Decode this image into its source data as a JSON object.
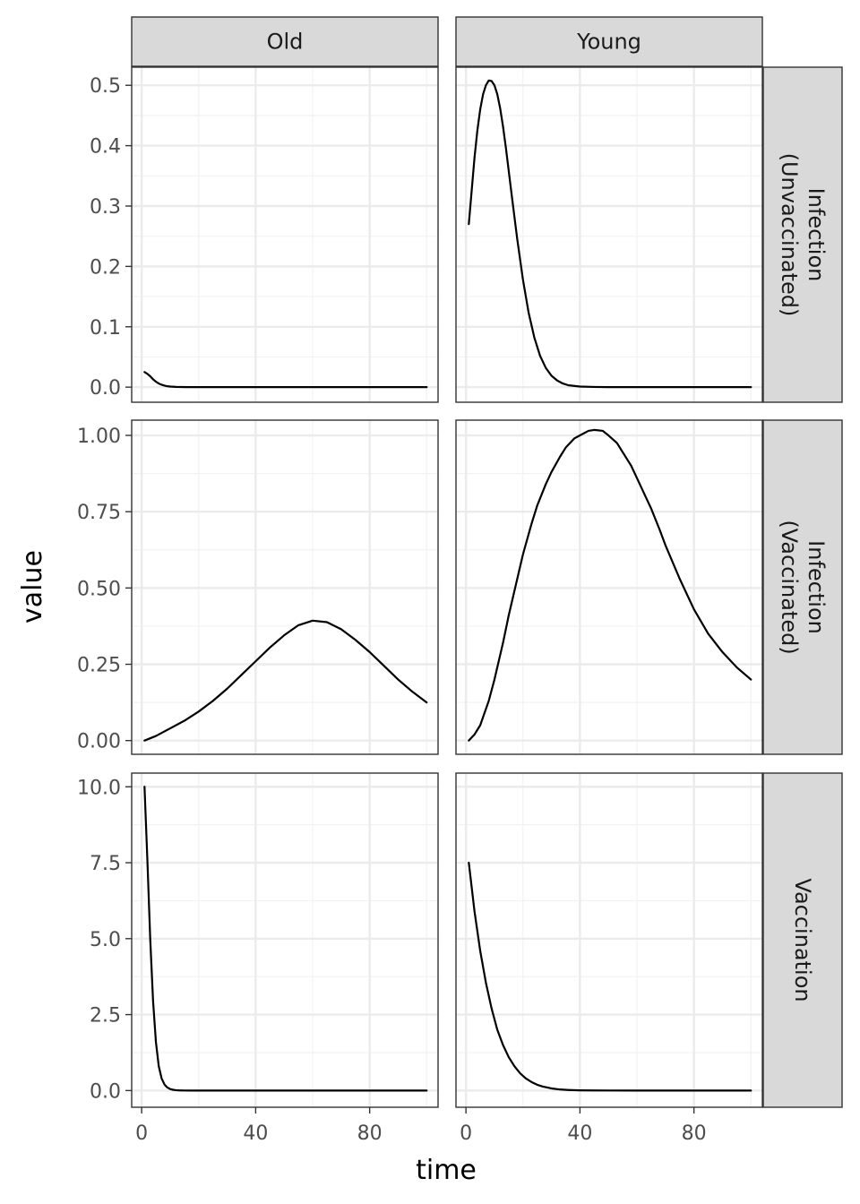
{
  "chart_data": {
    "type": "line",
    "xlabel": "time",
    "ylabel": "value",
    "columns": [
      "Old",
      "Young"
    ],
    "rows": [
      [
        "Infection",
        "(Unvaccinated)"
      ],
      [
        "Infection",
        "(Vaccinated)"
      ],
      [
        "Vaccination"
      ]
    ],
    "x_ticks": [
      "0",
      "40",
      "80"
    ],
    "x_tick_values": [
      0,
      40,
      80
    ],
    "xlim": [
      -3.5,
      104
    ],
    "row_ylims": [
      [
        -0.025,
        0.53
      ],
      [
        -0.045,
        1.05
      ],
      [
        -0.55,
        10.45
      ]
    ],
    "y_ticks": [
      [
        "0.0",
        "0.1",
        "0.2",
        "0.3",
        "0.4",
        "0.5"
      ],
      [
        "0.00",
        "0.25",
        "0.50",
        "0.75",
        "1.00"
      ],
      [
        "0.0",
        "2.5",
        "5.0",
        "7.5",
        "10.0"
      ]
    ],
    "y_tick_values": [
      [
        0,
        0.1,
        0.2,
        0.3,
        0.4,
        0.5
      ],
      [
        0,
        0.25,
        0.5,
        0.75,
        1.0
      ],
      [
        0,
        2.5,
        5.0,
        7.5,
        10.0
      ]
    ],
    "grid": true,
    "panels": [
      {
        "row": 0,
        "col": 0,
        "x": [
          1,
          2,
          3,
          4,
          5,
          6,
          7,
          8,
          9,
          10,
          12,
          14,
          16,
          20,
          30,
          50,
          70,
          100
        ],
        "y": [
          0.025,
          0.022,
          0.018,
          0.013,
          0.009,
          0.006,
          0.004,
          0.0025,
          0.0015,
          0.001,
          0.0004,
          0.0002,
          0.0001,
          0,
          0,
          0,
          0,
          0
        ]
      },
      {
        "row": 0,
        "col": 1,
        "x": [
          1,
          2,
          3,
          4,
          5,
          6,
          7,
          8,
          9,
          10,
          11,
          12,
          13,
          14,
          16,
          18,
          20,
          22,
          24,
          26,
          28,
          30,
          32,
          34,
          36,
          40,
          45,
          50,
          60,
          100
        ],
        "y": [
          0.27,
          0.325,
          0.38,
          0.425,
          0.46,
          0.485,
          0.5,
          0.508,
          0.507,
          0.5,
          0.485,
          0.462,
          0.432,
          0.397,
          0.32,
          0.245,
          0.178,
          0.123,
          0.082,
          0.052,
          0.032,
          0.019,
          0.011,
          0.006,
          0.003,
          0.001,
          0.0003,
          0.0001,
          0,
          0
        ]
      },
      {
        "row": 1,
        "col": 0,
        "x": [
          1,
          5,
          10,
          15,
          20,
          25,
          30,
          35,
          40,
          45,
          50,
          55,
          60,
          65,
          70,
          75,
          80,
          85,
          90,
          95,
          100
        ],
        "y": [
          0.0,
          0.015,
          0.04,
          0.065,
          0.095,
          0.13,
          0.17,
          0.215,
          0.26,
          0.305,
          0.345,
          0.378,
          0.393,
          0.388,
          0.365,
          0.33,
          0.29,
          0.245,
          0.2,
          0.16,
          0.125
        ]
      },
      {
        "row": 1,
        "col": 1,
        "x": [
          1,
          3,
          5,
          8,
          10,
          13,
          15,
          18,
          20,
          23,
          25,
          28,
          30,
          33,
          35,
          38,
          40,
          43,
          45,
          48,
          50,
          53,
          55,
          58,
          60,
          63,
          65,
          68,
          70,
          75,
          80,
          85,
          90,
          95,
          100
        ],
        "y": [
          0.0,
          0.02,
          0.05,
          0.13,
          0.2,
          0.32,
          0.41,
          0.53,
          0.61,
          0.71,
          0.77,
          0.84,
          0.88,
          0.93,
          0.96,
          0.99,
          1.0,
          1.015,
          1.018,
          1.015,
          1.0,
          0.975,
          0.945,
          0.9,
          0.86,
          0.8,
          0.76,
          0.69,
          0.64,
          0.53,
          0.43,
          0.35,
          0.29,
          0.24,
          0.2
        ]
      },
      {
        "row": 2,
        "col": 0,
        "x": [
          1,
          2,
          3,
          4,
          5,
          6,
          7,
          8,
          9,
          10,
          11,
          12,
          13,
          14,
          15,
          17,
          20,
          25,
          30,
          40,
          60,
          80,
          100
        ],
        "y": [
          10.0,
          7.6,
          5.0,
          2.95,
          1.6,
          0.8,
          0.4,
          0.2,
          0.1,
          0.05,
          0.025,
          0.012,
          0.006,
          0.003,
          0.0015,
          0,
          0,
          0,
          0,
          0,
          0,
          0,
          0
        ]
      },
      {
        "row": 2,
        "col": 1,
        "x": [
          1,
          3,
          5,
          7,
          9,
          11,
          13,
          15,
          17,
          19,
          21,
          23,
          25,
          27,
          30,
          33,
          36,
          40,
          45,
          50,
          60,
          80,
          100
        ],
        "y": [
          7.5,
          5.9,
          4.6,
          3.55,
          2.7,
          2.0,
          1.5,
          1.1,
          0.8,
          0.57,
          0.4,
          0.28,
          0.19,
          0.13,
          0.07,
          0.035,
          0.018,
          0.007,
          0.002,
          0.0005,
          0,
          0,
          0
        ]
      }
    ]
  }
}
